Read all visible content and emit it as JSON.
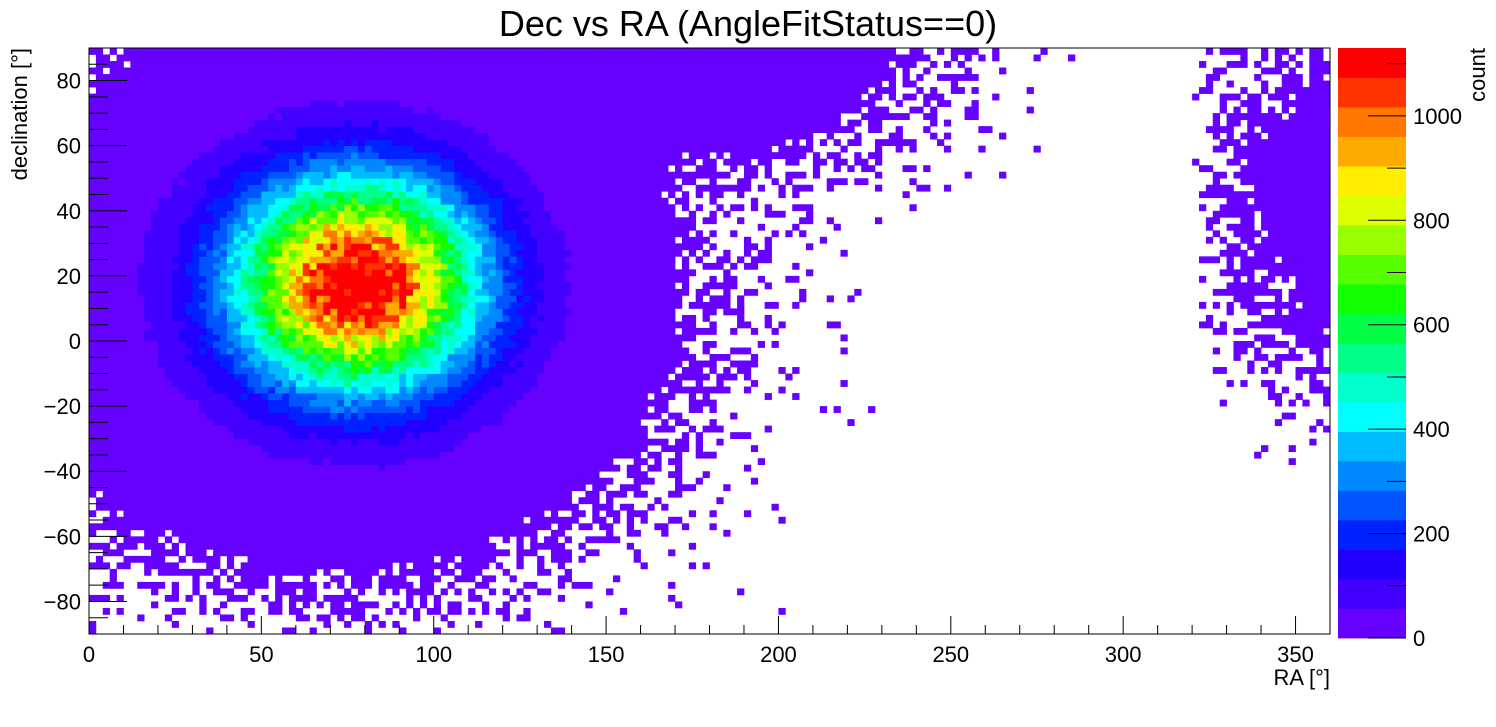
{
  "chart_data": {
    "type": "heatmap",
    "title": "Dec vs RA (AngleFitStatus==0)",
    "xlabel": "RA [°]",
    "ylabel": "declination [°]",
    "zlabel": "count",
    "xlim": [
      0,
      360
    ],
    "ylim": [
      -90,
      90
    ],
    "zlim": [
      0,
      1130
    ],
    "x_ticks": [
      0,
      50,
      100,
      150,
      200,
      250,
      300,
      350
    ],
    "y_ticks": [
      -80,
      -60,
      -40,
      -20,
      0,
      20,
      40,
      60,
      80
    ],
    "z_ticks": [
      0,
      200,
      400,
      600,
      800,
      1000
    ],
    "x_tick_labels": [
      "0",
      "50",
      "100",
      "150",
      "200",
      "250",
      "300",
      "350"
    ],
    "y_tick_labels": [
      "−80",
      "−60",
      "−40",
      "−20",
      "0",
      "20",
      "40",
      "60",
      "80"
    ],
    "z_tick_labels": [
      "0",
      "200",
      "400",
      "600",
      "800",
      "1000"
    ],
    "bin_width": 2,
    "peak": {
      "ra": 78,
      "dec": 18,
      "count": 1130
    },
    "palette": [
      "#6600ff",
      "#4400ff",
      "#2200ff",
      "#0022ff",
      "#0055ff",
      "#0088ff",
      "#00bbff",
      "#00ffff",
      "#00ffcc",
      "#00ff88",
      "#00ff44",
      "#11ff00",
      "#55ff00",
      "#99ff00",
      "#ddff00",
      "#ffee00",
      "#ffaa00",
      "#ff7700",
      "#ff3300",
      "#ff0000"
    ],
    "legend": "colorbar-right",
    "grid": false
  }
}
